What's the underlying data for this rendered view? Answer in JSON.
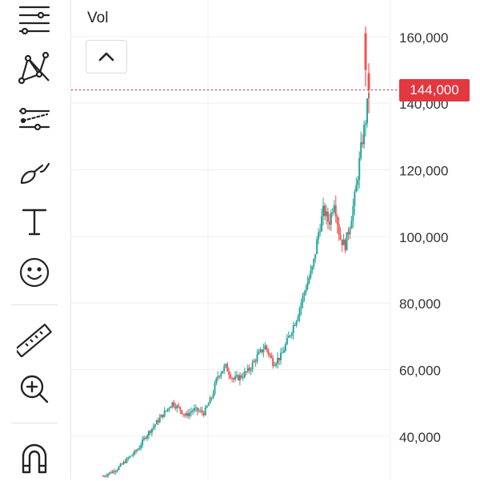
{
  "toolbar": {
    "tools": [
      {
        "name": "trend-lines-tool-icon"
      },
      {
        "name": "patterns-tool-icon"
      },
      {
        "name": "prediction-tool-icon"
      },
      {
        "name": "brush-tool-icon"
      },
      {
        "name": "text-tool-icon"
      },
      {
        "name": "emoji-tool-icon"
      },
      {
        "name": "ruler-tool-icon"
      },
      {
        "name": "zoom-in-tool-icon"
      },
      {
        "name": "magnet-tool-icon"
      }
    ]
  },
  "indicator": {
    "label": "Vol"
  },
  "current_price": {
    "label": "144,000",
    "value": 144000,
    "color": "#e2383f"
  },
  "colors": {
    "up": "#26a69a",
    "down": "#ef5350",
    "grid": "#efefef",
    "axis_text": "#333333"
  },
  "chart_data": {
    "type": "candlestick",
    "y_axis": {
      "ticks": [
        160000,
        140000,
        120000,
        100000,
        80000,
        60000,
        40000
      ],
      "tick_labels": [
        "160,000",
        "140,000",
        "120,000",
        "100,000",
        "80,000",
        "60,000",
        "40,000"
      ],
      "range": [
        27000,
        171000
      ]
    },
    "price_path": [
      [
        0,
        28000
      ],
      [
        0.05,
        30000
      ],
      [
        0.09,
        33000
      ],
      [
        0.13,
        36000
      ],
      [
        0.16,
        40000
      ],
      [
        0.2,
        44000
      ],
      [
        0.23,
        47000
      ],
      [
        0.26,
        50000
      ],
      [
        0.29,
        48000
      ],
      [
        0.31,
        46000
      ],
      [
        0.34,
        48000
      ],
      [
        0.38,
        47000
      ],
      [
        0.41,
        52000
      ],
      [
        0.43,
        58000
      ],
      [
        0.46,
        61000
      ],
      [
        0.49,
        57000
      ],
      [
        0.52,
        58000
      ],
      [
        0.55,
        60000
      ],
      [
        0.58,
        64000
      ],
      [
        0.61,
        67000
      ],
      [
        0.64,
        62000
      ],
      [
        0.67,
        64000
      ],
      [
        0.7,
        70000
      ],
      [
        0.73,
        76000
      ],
      [
        0.76,
        84000
      ],
      [
        0.79,
        91000
      ],
      [
        0.81,
        101000
      ],
      [
        0.83,
        108000
      ],
      [
        0.85,
        104000
      ],
      [
        0.87,
        111000
      ],
      [
        0.89,
        100000
      ],
      [
        0.91,
        97000
      ],
      [
        0.93,
        104000
      ],
      [
        0.95,
        113000
      ],
      [
        0.97,
        126000
      ],
      [
        0.99,
        136000
      ],
      [
        1.0,
        144000
      ]
    ],
    "spike": {
      "high": 163000,
      "low": 137000,
      "close": 144000
    }
  }
}
